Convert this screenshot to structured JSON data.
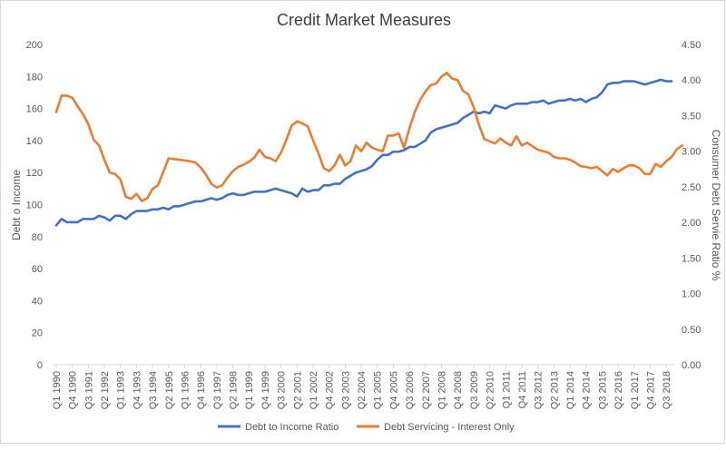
{
  "chart_data": {
    "type": "line",
    "title": "Credit Market Measures",
    "xlabel": "",
    "ylabel": "Debt o Income",
    "y2label": "Consumer Debt Servie Ratio %",
    "ylim": [
      0,
      200
    ],
    "y2lim": [
      0,
      4.5
    ],
    "y_ticks": [
      "0",
      "20",
      "40",
      "60",
      "80",
      "100",
      "120",
      "140",
      "160",
      "180",
      "200"
    ],
    "y2_ticks": [
      "0.00",
      "0.50",
      "1.00",
      "1.50",
      "2.00",
      "2.50",
      "3.00",
      "3.50",
      "4.00",
      "4.50"
    ],
    "grid": false,
    "legend_position": "bottom",
    "x_tick_labels": [
      "Q1 1990",
      "Q4 1990",
      "Q3 1991",
      "Q2 1992",
      "Q1 1993",
      "Q4 1993",
      "Q3 1994",
      "Q2 1995",
      "Q1 1996",
      "Q4 1996",
      "Q3 1997",
      "Q2 1998",
      "Q1 1999",
      "Q4 1999",
      "Q3 2000",
      "Q2 2001",
      "Q1 2002",
      "Q4 2002",
      "Q3 2003",
      "Q2 2004",
      "Q1 2005",
      "Q4 2005",
      "Q3 2006",
      "Q2 2007",
      "Q1 2008",
      "Q4 2008",
      "Q3 2009",
      "Q2 2010",
      "Q1 2011",
      "Q4 2011",
      "Q3 2012",
      "Q2 2013",
      "Q1 2014",
      "Q4 2014",
      "Q3 2015",
      "Q2 2016",
      "Q1 2017",
      "Q4 2017",
      "Q3 2018"
    ],
    "x_start": {
      "year": 1990,
      "quarter": 1
    },
    "series": [
      {
        "name": "Debt to Income Ratio",
        "axis": "left",
        "color": "#4472C4",
        "values": [
          87,
          91,
          89,
          89,
          89,
          91,
          91,
          91,
          93,
          92,
          90,
          93,
          93,
          91,
          94,
          96,
          96,
          96,
          97,
          97,
          98,
          97,
          99,
          99,
          100,
          101,
          102,
          102,
          103,
          104,
          103,
          104,
          106,
          107,
          106,
          106,
          107,
          108,
          108,
          108,
          109,
          110,
          109,
          108,
          107,
          105,
          110,
          108,
          109,
          109,
          112,
          112,
          113,
          113,
          116,
          118,
          120,
          121,
          122,
          124,
          128,
          131,
          131,
          133,
          133,
          134,
          136,
          136,
          138,
          140,
          145,
          147,
          148,
          149,
          150,
          151,
          154,
          156,
          158,
          157,
          158,
          157,
          162,
          161,
          160,
          162,
          163,
          163,
          163,
          164,
          164,
          165,
          163,
          164,
          165,
          165,
          166,
          165,
          166,
          164,
          166,
          167,
          170,
          175,
          176,
          176,
          177,
          177,
          177,
          176,
          175,
          176,
          177,
          178,
          177,
          177
        ]
      },
      {
        "name": "Debt Servicing - Interest Only",
        "axis": "right",
        "color": "#ED7D31",
        "values": [
          3.55,
          3.78,
          3.78,
          3.75,
          3.63,
          3.52,
          3.38,
          3.16,
          3.08,
          2.88,
          2.7,
          2.68,
          2.6,
          2.36,
          2.33,
          2.4,
          2.3,
          2.34,
          2.47,
          2.52,
          2.71,
          2.9,
          2.89,
          2.88,
          2.87,
          2.86,
          2.84,
          2.77,
          2.67,
          2.54,
          2.49,
          2.52,
          2.63,
          2.72,
          2.78,
          2.81,
          2.85,
          2.91,
          3.02,
          2.92,
          2.9,
          2.86,
          2.98,
          3.16,
          3.36,
          3.42,
          3.39,
          3.35,
          3.15,
          2.97,
          2.76,
          2.72,
          2.8,
          2.95,
          2.8,
          2.86,
          3.08,
          3.0,
          3.12,
          3.05,
          3.02,
          3.0,
          3.22,
          3.22,
          3.25,
          3.05,
          3.32,
          3.55,
          3.72,
          3.84,
          3.93,
          3.95,
          4.05,
          4.1,
          4.02,
          4.0,
          3.85,
          3.8,
          3.62,
          3.37,
          3.17,
          3.14,
          3.11,
          3.18,
          3.12,
          3.08,
          3.21,
          3.08,
          3.12,
          3.07,
          3.02,
          3.0,
          2.98,
          2.92,
          2.9,
          2.9,
          2.88,
          2.84,
          2.79,
          2.78,
          2.76,
          2.78,
          2.72,
          2.66,
          2.75,
          2.71,
          2.76,
          2.8,
          2.8,
          2.76,
          2.68,
          2.68,
          2.82,
          2.78,
          2.86,
          2.92,
          3.03,
          3.08
        ]
      }
    ]
  }
}
